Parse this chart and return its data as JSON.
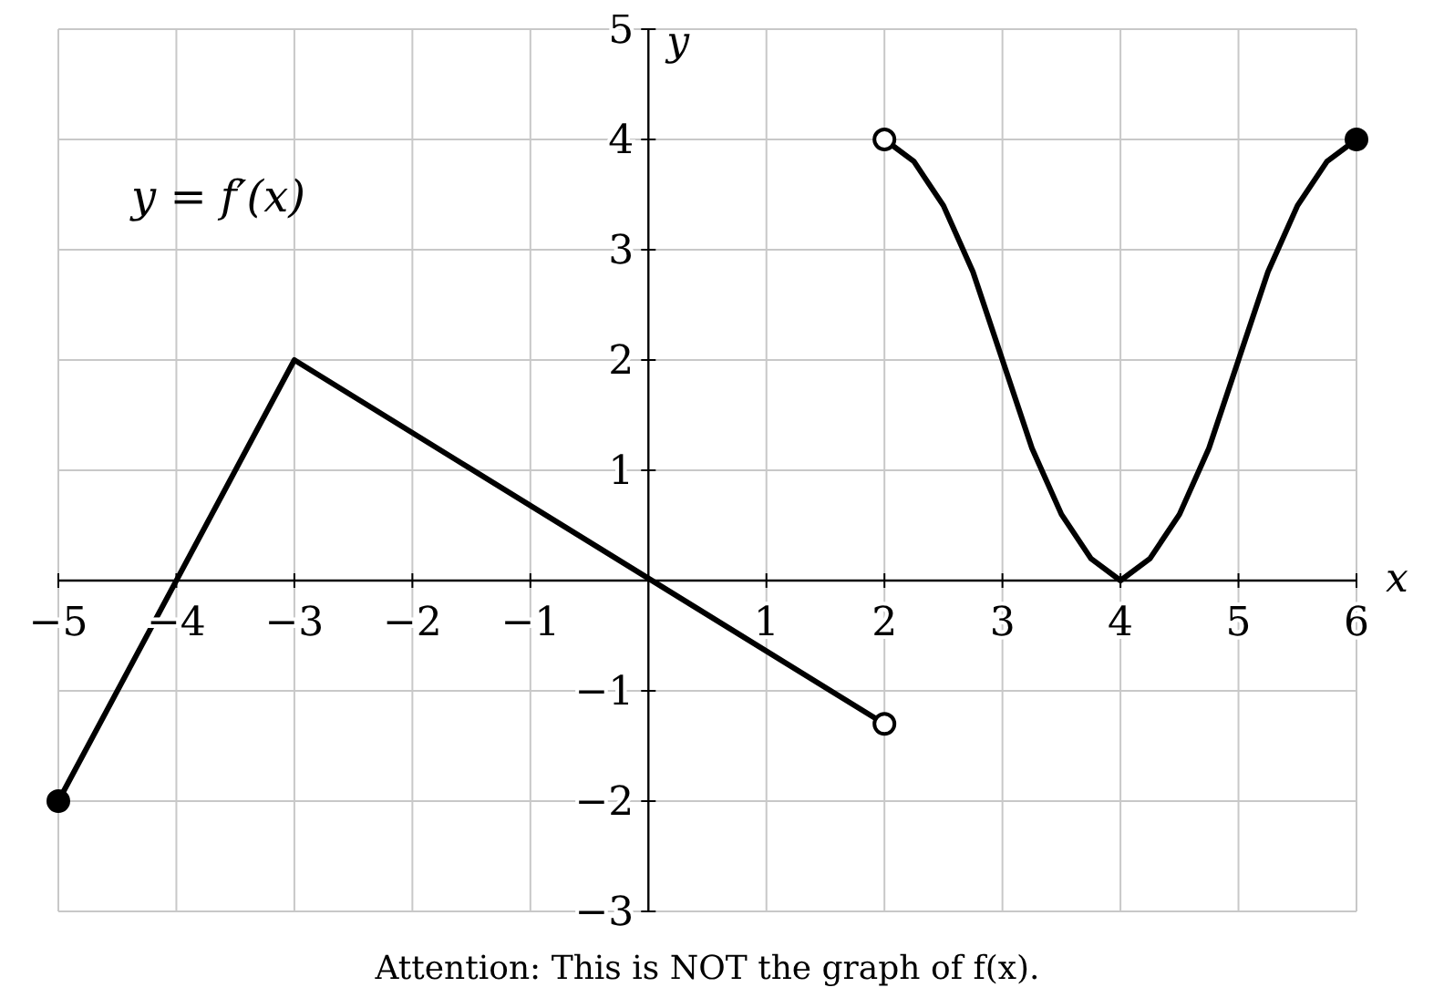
{
  "chart_data": {
    "type": "line",
    "xlabel": "x",
    "ylabel": "y",
    "xlim": [
      -5,
      6
    ],
    "ylim": [
      -3,
      5
    ],
    "xticks": [
      {
        "value": -5,
        "label": "−5"
      },
      {
        "value": -4,
        "label": "−4"
      },
      {
        "value": -3,
        "label": "−3"
      },
      {
        "value": -2,
        "label": "−2"
      },
      {
        "value": -1,
        "label": "−1"
      },
      1,
      2,
      3,
      4,
      5,
      6
    ],
    "yticks": [
      {
        "value": -3,
        "label": "−3"
      },
      {
        "value": -2,
        "label": "−2"
      },
      {
        "value": -1,
        "label": "−1"
      },
      1,
      2,
      3,
      4,
      5
    ],
    "grid": true,
    "line_style": "solid",
    "marker": "none",
    "series": [
      {
        "color": "#000000",
        "x": [
          -5,
          -3,
          2
        ],
        "values": [
          -2,
          2,
          -1.3
        ]
      },
      {
        "color": "#000000",
        "x": [
          2,
          2.25,
          2.5,
          2.75,
          3,
          3.25,
          3.5,
          3.75,
          4,
          4.25,
          4.5,
          4.75,
          5,
          5.25,
          5.5,
          5.75,
          6
        ],
        "values": [
          4,
          3.8,
          3.4,
          2.8,
          2,
          1.2,
          0.6,
          0.2,
          0,
          0.2,
          0.6,
          1.2,
          2,
          2.8,
          3.4,
          3.8,
          4
        ]
      },
      {
        "type": "scatter",
        "marker": "circle",
        "color": "#000000",
        "x": [
          -5,
          6
        ],
        "values": [
          -2,
          4
        ]
      },
      {
        "type": "scatter",
        "marker": "circle",
        "color": "#ffffff",
        "x": [
          2,
          2
        ],
        "values": [
          -1.3,
          4
        ]
      }
    ],
    "annotations": [
      "y = f′(x)",
      "Attention: This is NOT the graph of f(x)."
    ]
  }
}
